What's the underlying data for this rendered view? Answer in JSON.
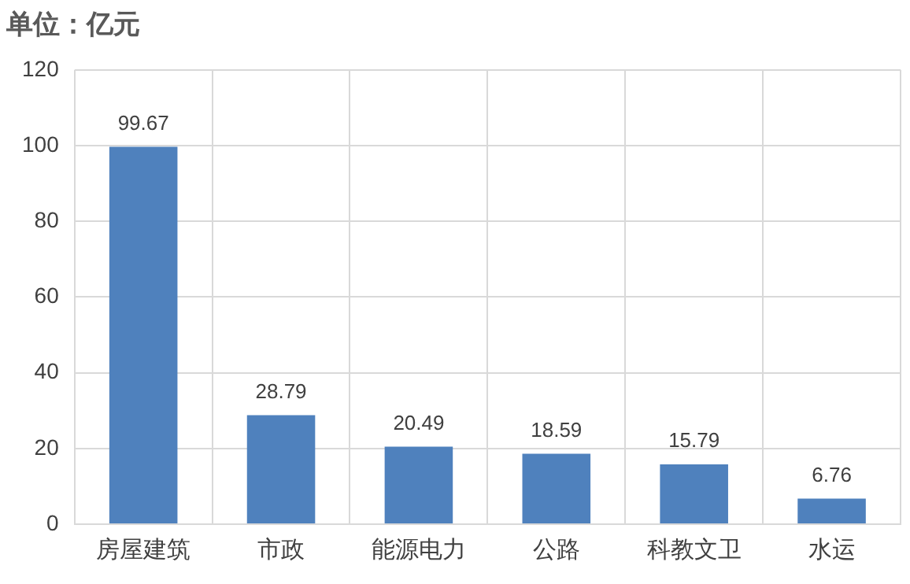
{
  "chart_data": {
    "type": "bar",
    "title": "单位：亿元",
    "categories": [
      "房屋建筑",
      "市政",
      "能源电力",
      "公路",
      "科教文卫",
      "水运"
    ],
    "values": [
      99.67,
      28.79,
      20.49,
      18.59,
      15.79,
      6.76
    ],
    "color": "#4f81bd",
    "ylim": [
      0,
      120
    ],
    "yticks": [
      0,
      20,
      40,
      60,
      80,
      100,
      120
    ],
    "grid": true,
    "data_labels": true,
    "legend": false
  }
}
